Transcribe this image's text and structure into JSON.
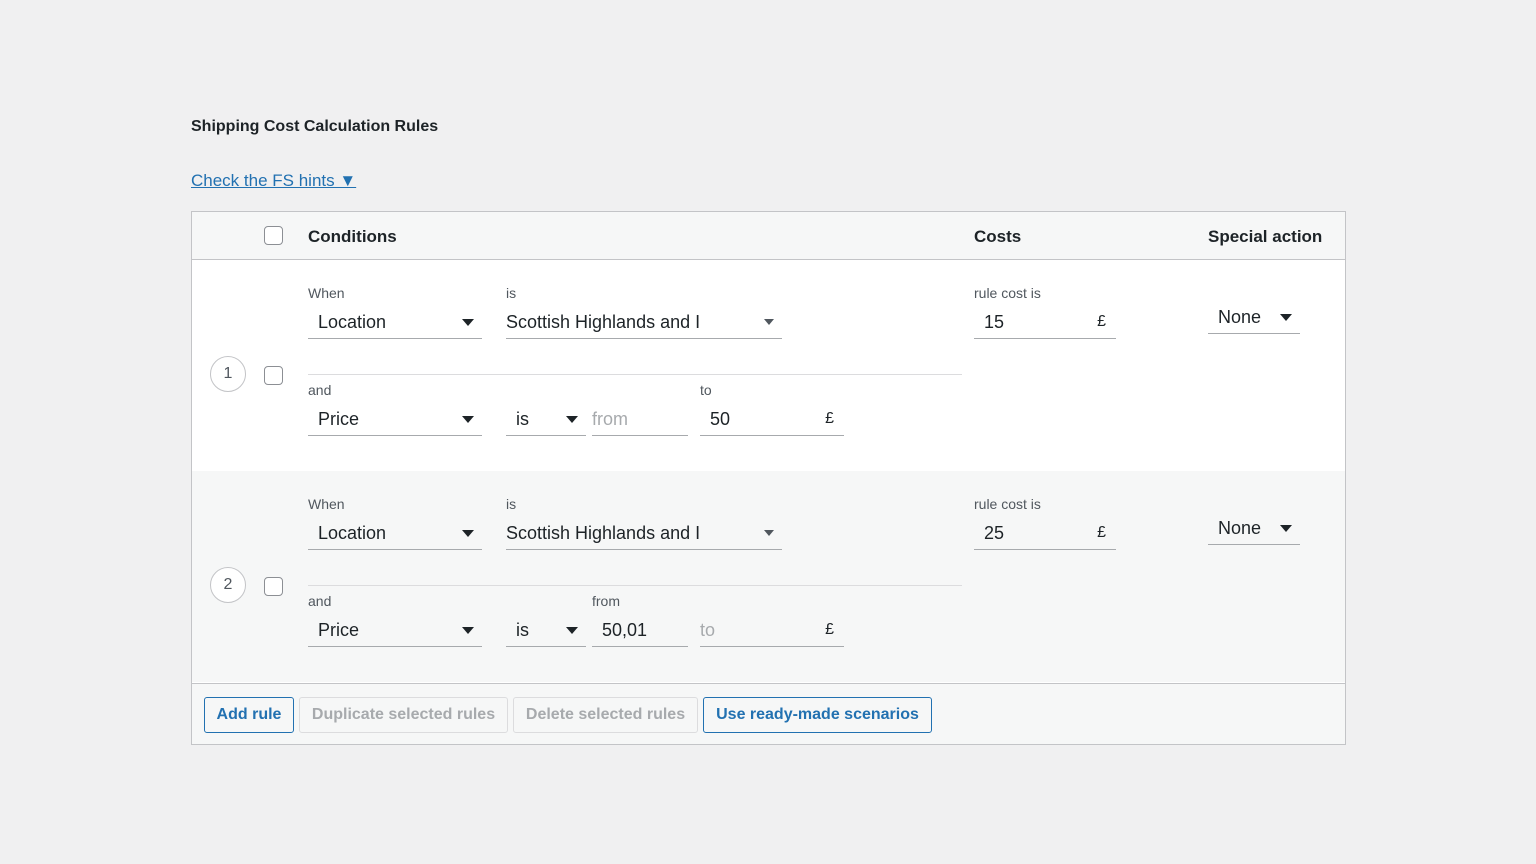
{
  "title": "Shipping Cost Calculation Rules",
  "hints_link": "Check the FS hints ▼",
  "table": {
    "headers": {
      "conditions": "Conditions",
      "costs": "Costs",
      "special_action": "Special action"
    },
    "rules": [
      {
        "number": "1",
        "when_label": "When",
        "when_value": "Location",
        "is_label": "is",
        "is_value": "Scottish Highlands and I",
        "cost_label": "rule cost is",
        "cost_value": "15",
        "currency": "£",
        "special_value": "None",
        "and_label": "and",
        "and_value": "Price",
        "op_value": "is",
        "from_label": "",
        "from_value": "",
        "from_placeholder": "from",
        "to_label": "to",
        "to_value": "50",
        "to_placeholder": ""
      },
      {
        "number": "2",
        "when_label": "When",
        "when_value": "Location",
        "is_label": "is",
        "is_value": "Scottish Highlands and I",
        "cost_label": "rule cost is",
        "cost_value": "25",
        "currency": "£",
        "special_value": "None",
        "and_label": "and",
        "and_value": "Price",
        "op_value": "is",
        "from_label": "from",
        "from_value": "50,01",
        "from_placeholder": "",
        "to_label": "",
        "to_value": "",
        "to_placeholder": "to"
      }
    ]
  },
  "buttons": {
    "add": "Add rule",
    "duplicate": "Duplicate selected rules",
    "delete": "Delete selected rules",
    "scenarios": "Use ready-made scenarios"
  },
  "colors": {
    "accent": "#2271b1",
    "background": "#f0f0f1"
  }
}
